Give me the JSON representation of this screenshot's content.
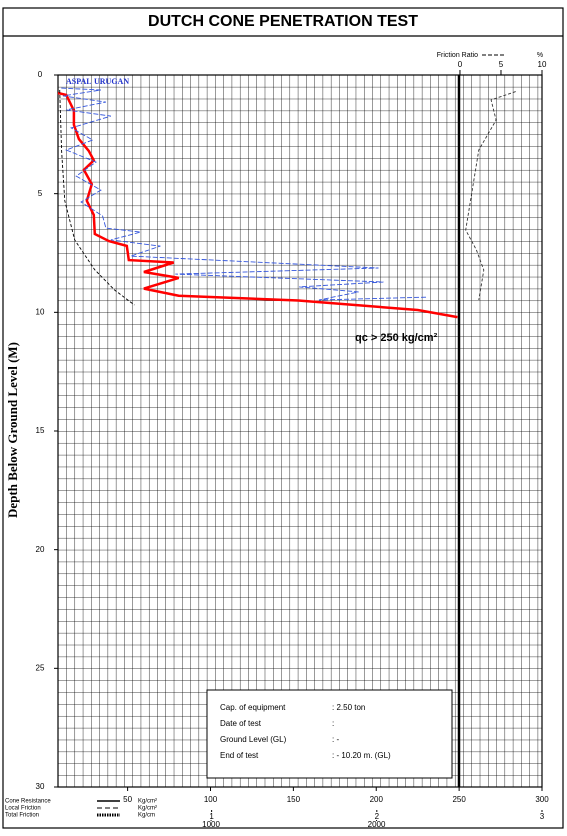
{
  "chart_data": {
    "type": "line",
    "title": "DUTCH CONE PENETRATION TEST",
    "y_label": "Depth Below Ground Level  (M)",
    "ylim": [
      0,
      30
    ],
    "yticks": [
      0,
      5,
      10,
      15,
      20,
      25,
      30
    ],
    "xlim": [
      8,
      300
    ],
    "xticks": [
      50,
      100,
      150,
      200,
      250,
      300
    ],
    "x2lim": [
      0.07,
      3
    ],
    "x2ticks": [
      1,
      2,
      3
    ],
    "x3lim": [
      75,
      3000
    ],
    "x3ticks": [
      1000,
      2000
    ],
    "frlim": [
      -49,
      10
    ],
    "frticks": [
      0,
      5,
      10
    ],
    "fr_label": "Friction Ratio",
    "fr_unit": "%",
    "annotations": [
      "ASPAL",
      "URUGAN",
      "qc > 250 kg/cm²"
    ],
    "series": [
      {
        "name": "Cone Resistance",
        "unit": "Kg/cm²",
        "color": "#ff0000",
        "axis": "x",
        "depth": [
          0.76,
          0.84,
          1.5,
          2.1,
          2.7,
          3.2,
          3.6,
          4.0,
          4.6,
          5.3,
          5.9,
          6.7,
          7.0,
          7.2,
          7.8,
          7.9,
          8.3,
          8.55,
          9.0,
          9.3,
          9.5,
          9.9,
          10.2
        ],
        "values": [
          8,
          13,
          17.6,
          17.6,
          20.6,
          26.6,
          29.6,
          23.6,
          28.4,
          25.4,
          29.6,
          30.2,
          38.7,
          49.5,
          50.7,
          77.8,
          59.8,
          80.8,
          59.8,
          80.8,
          153,
          225,
          249
        ]
      },
      {
        "name": "Local Friction",
        "unit": "Kg/cm²",
        "color": "#3355dd",
        "axis": "x2",
        "depth": [
          0.55,
          0.63,
          0.88,
          1.14,
          1.47,
          1.73,
          2.23,
          2.74,
          3.16,
          3.67,
          4.26,
          4.85,
          5.35,
          5.94,
          6.45,
          6.62,
          6.95,
          7.21,
          7.63,
          8.13,
          8.39,
          8.72,
          8.93,
          9.14,
          9.48,
          9.36
        ],
        "values": [
          0.09,
          0.33,
          0.1,
          0.36,
          0.12,
          0.39,
          0.15,
          0.28,
          0.12,
          0.3,
          0.18,
          0.33,
          0.21,
          0.34,
          0.36,
          0.57,
          0.39,
          0.69,
          0.51,
          2.01,
          0.78,
          2.04,
          1.53,
          1.89,
          1.65,
          2.31
        ]
      },
      {
        "name": "Total Friction",
        "unit": "Kg/cm",
        "color": "#000000",
        "axis": "x3",
        "depth": [
          0.63,
          3.2,
          5.3,
          6.95,
          8.2,
          9.06,
          9.69
        ],
        "values": [
          85,
          97,
          116,
          176,
          296,
          417,
          537
        ]
      },
      {
        "name": "Friction Ratio",
        "color": "#333333",
        "axis": "fr",
        "depth": [
          0.7,
          1.05,
          1.9,
          3.16,
          5.27,
          6.53,
          7.37,
          8.22,
          9.48
        ],
        "values": [
          6.8,
          3.8,
          4.4,
          2.3,
          1.3,
          0.7,
          2,
          2.9,
          2.3
        ]
      }
    ],
    "info": [
      {
        "label": "Cap. of equipment",
        "value": ": 2.50 ton"
      },
      {
        "label": "Date of test",
        "value": ":"
      },
      {
        "label": "Ground Level (GL)",
        "value": ":   -"
      },
      {
        "label": "End of test",
        "value": ": - 10.20 m. (GL)"
      }
    ]
  }
}
